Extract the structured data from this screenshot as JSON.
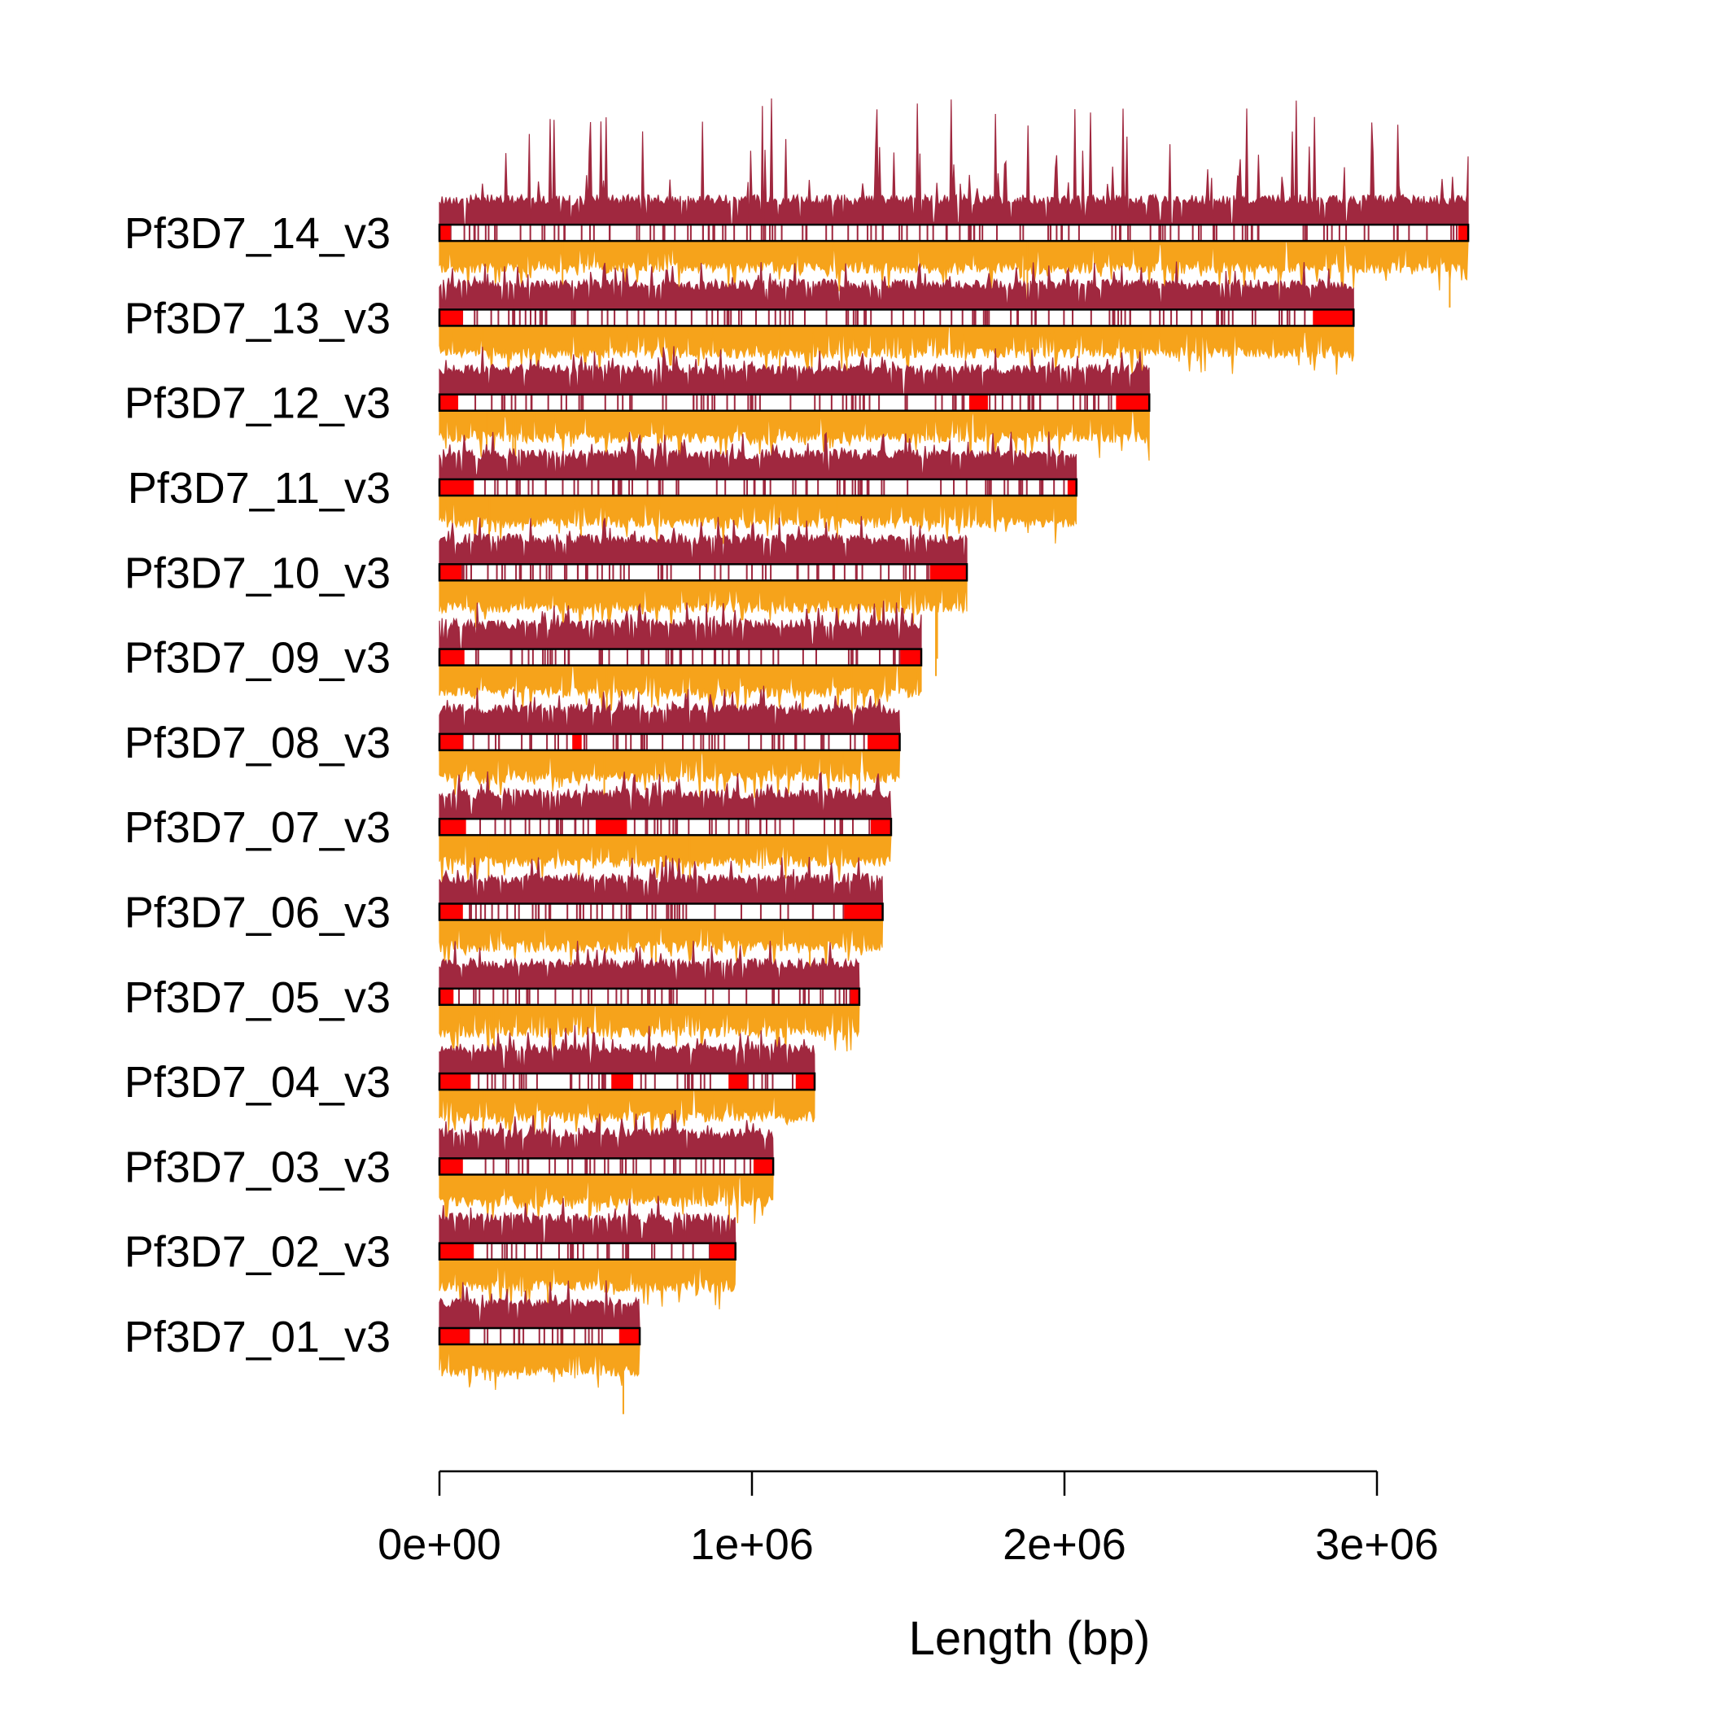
{
  "chart_data": {
    "type": "ideogram",
    "xlabel": "Length (bp)",
    "x_range": [
      0,
      3300000
    ],
    "x_ticks": [
      {
        "value": 0,
        "label": "0e+00"
      },
      {
        "value": 1000000,
        "label": "1e+06"
      },
      {
        "value": 2000000,
        "label": "2e+06"
      },
      {
        "value": 3000000,
        "label": "3e+06"
      }
    ],
    "colors": {
      "upper_track": "#a0283f",
      "lower_track": "#f6a31b",
      "region": "#ff0000",
      "chromosome_fill": "#ffffff",
      "chromosome_border": "#000000"
    },
    "chromosomes": [
      {
        "name": "Pf3D7_14_v3",
        "length": 3291936,
        "regions": [
          [
            0,
            35000
          ],
          [
            3260000,
            3291936
          ]
        ]
      },
      {
        "name": "Pf3D7_13_v3",
        "length": 2925236,
        "regions": [
          [
            0,
            75000
          ],
          [
            2795000,
            2925236
          ]
        ]
      },
      {
        "name": "Pf3D7_12_v3",
        "length": 2271494,
        "regions": [
          [
            0,
            60000
          ],
          [
            1695000,
            1755000
          ],
          [
            2165000,
            2271494
          ]
        ]
      },
      {
        "name": "Pf3D7_11_v3",
        "length": 2038340,
        "regions": [
          [
            0,
            110000
          ],
          [
            2010000,
            2038340
          ]
        ]
      },
      {
        "name": "Pf3D7_10_v3",
        "length": 1687656,
        "regions": [
          [
            0,
            70000
          ],
          [
            1570000,
            1687656
          ]
        ]
      },
      {
        "name": "Pf3D7_09_v3",
        "length": 1541735,
        "regions": [
          [
            0,
            80000
          ],
          [
            1475000,
            1541735
          ]
        ]
      },
      {
        "name": "Pf3D7_08_v3",
        "length": 1472805,
        "regions": [
          [
            0,
            75000
          ],
          [
            425000,
            455000
          ],
          [
            1370000,
            1472805
          ]
        ]
      },
      {
        "name": "Pf3D7_07_v3",
        "length": 1445207,
        "regions": [
          [
            0,
            85000
          ],
          [
            500000,
            600000
          ],
          [
            1380000,
            1445207
          ]
        ]
      },
      {
        "name": "Pf3D7_06_v3",
        "length": 1418242,
        "regions": [
          [
            0,
            75000
          ],
          [
            1295000,
            1418242
          ]
        ]
      },
      {
        "name": "Pf3D7_05_v3",
        "length": 1343557,
        "regions": [
          [
            0,
            45000
          ],
          [
            1315000,
            1343557
          ]
        ]
      },
      {
        "name": "Pf3D7_04_v3",
        "length": 1200490,
        "regions": [
          [
            0,
            100000
          ],
          [
            550000,
            620000
          ],
          [
            925000,
            985000
          ],
          [
            1140000,
            1200490
          ]
        ]
      },
      {
        "name": "Pf3D7_03_v3",
        "length": 1067971,
        "regions": [
          [
            0,
            75000
          ],
          [
            1005000,
            1067971
          ]
        ]
      },
      {
        "name": "Pf3D7_02_v3",
        "length": 947102,
        "regions": [
          [
            0,
            110000
          ],
          [
            865000,
            947102
          ]
        ]
      },
      {
        "name": "Pf3D7_01_v3",
        "length": 640851,
        "regions": [
          [
            0,
            95000
          ],
          [
            575000,
            640851
          ]
        ]
      }
    ]
  }
}
